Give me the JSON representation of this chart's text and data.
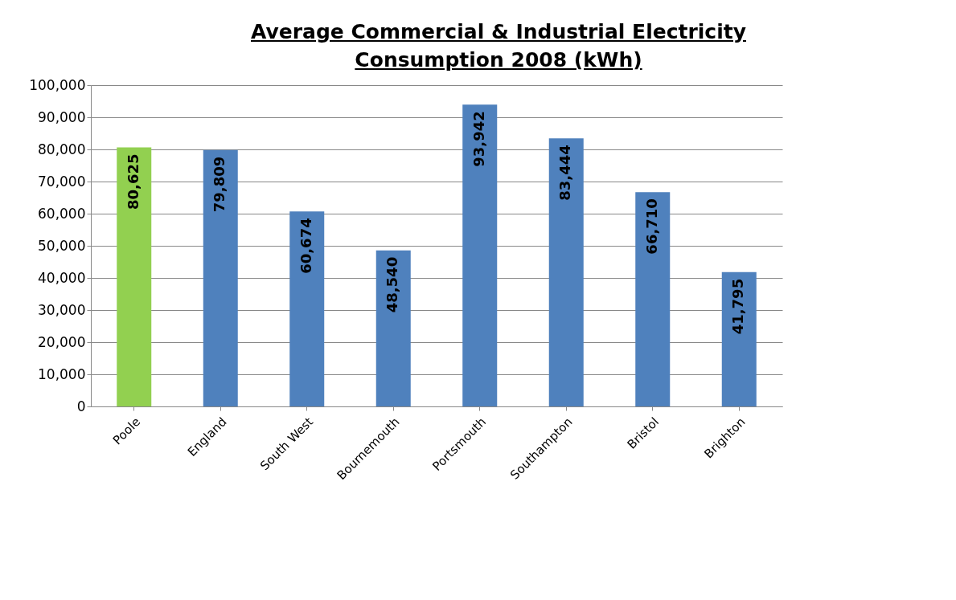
{
  "chart_data": {
    "type": "bar",
    "title": "Average Commercial & Industrial Electricity Consumption 2008 (kWh)",
    "categories": [
      "Poole",
      "England",
      "South West",
      "Bournemouth",
      "Portsmouth",
      "Southampton",
      "Bristol",
      "Brighton"
    ],
    "values": [
      80625,
      79809,
      60674,
      48540,
      93942,
      83444,
      66710,
      41795
    ],
    "value_labels": [
      "80,625",
      "79,809",
      "60,674",
      "48,540",
      "93,942",
      "83,444",
      "66,710",
      "41,795"
    ],
    "colors": [
      "#92d050",
      "#4f81bd",
      "#4f81bd",
      "#4f81bd",
      "#4f81bd",
      "#4f81bd",
      "#4f81bd",
      "#4f81bd"
    ],
    "ylim": [
      0,
      100000
    ],
    "yticks": [
      0,
      {
        "value": 10000,
        "label": "10,000"
      },
      {
        "value": 20000,
        "label": "20,000"
      },
      {
        "value": 30000,
        "label": "30,000"
      },
      {
        "value": 40000,
        "label": "40,000"
      },
      {
        "value": 50000,
        "label": "50,000"
      },
      {
        "value": 60000,
        "label": "60,000"
      },
      {
        "value": 70000,
        "label": "70,000"
      },
      {
        "value": 80000,
        "label": "80,000"
      },
      {
        "value": 90000,
        "label": "90,000"
      },
      {
        "value": 100000,
        "label": "100,000"
      }
    ],
    "grid": "y"
  }
}
